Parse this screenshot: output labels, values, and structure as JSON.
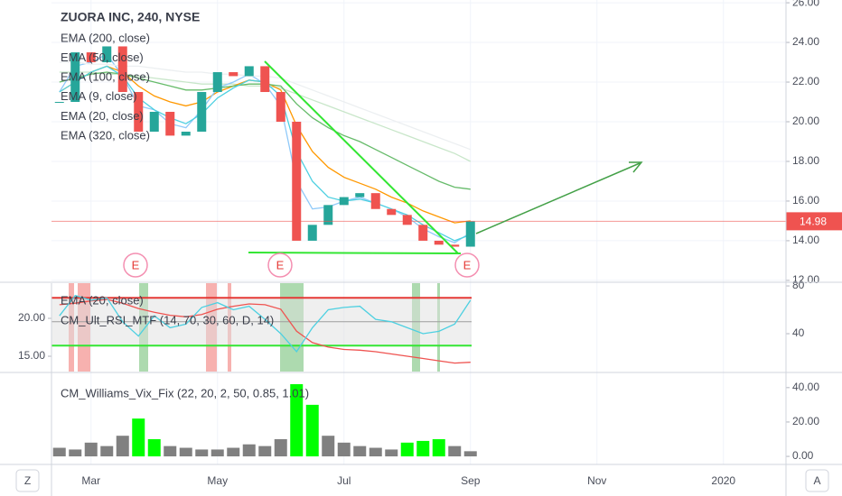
{
  "chart_data": [
    {
      "type": "candlestick",
      "title": "ZUORA INC, 240, NYSE",
      "categories": [
        null,
        null,
        "Mar",
        null,
        null,
        null,
        null,
        null,
        null,
        null,
        "May",
        null,
        null,
        null,
        null,
        null,
        null,
        null,
        "Jul",
        null,
        null,
        null,
        null,
        null,
        null,
        null,
        "Sep",
        null,
        null,
        null,
        null,
        null,
        null,
        null,
        "Nov",
        null,
        null,
        null,
        null,
        null,
        null,
        null,
        "2020",
        null,
        null,
        null
      ],
      "values": [
        21.0,
        23.5,
        23.0,
        23.8,
        21.5,
        19.5,
        20.5,
        19.3,
        19.5,
        21.5,
        22.5,
        22.3,
        22.8,
        21.5,
        20.0,
        14.0,
        14.8,
        15.8,
        16.2,
        16.4,
        15.6,
        15.3,
        14.8,
        14.0,
        13.8,
        13.7,
        14.98,
        null,
        null,
        null,
        null,
        null,
        null,
        null,
        null,
        null,
        null,
        null,
        null,
        null,
        null,
        null,
        null,
        null,
        null,
        null
      ],
      "up_color": "#26a69a",
      "down_color": "#ef5350",
      "series": [
        {
          "name": "EMA (200, close)",
          "color": "#c8e6c9",
          "values": [
            22.5,
            22.5,
            22.5,
            22.4,
            22.4,
            22.3,
            22.2,
            22.1,
            22.0,
            21.9,
            21.9,
            21.9,
            21.8,
            21.8,
            21.7,
            21.4,
            21.1,
            20.8,
            20.5,
            20.2,
            19.9,
            19.6,
            19.3,
            19.0,
            18.7,
            18.4,
            18.0,
            null,
            null,
            null,
            null,
            null,
            null,
            null,
            null,
            null,
            null,
            null,
            null,
            null,
            null,
            null,
            null,
            null,
            null,
            null
          ]
        },
        {
          "name": "EMA (50, close)",
          "color": "#ff9800",
          "values": [
            21.5,
            22.0,
            22.5,
            22.8,
            22.5,
            21.8,
            21.3,
            21.0,
            20.8,
            21.0,
            21.5,
            21.8,
            22.1,
            22.0,
            21.6,
            19.8,
            18.5,
            17.7,
            17.2,
            16.9,
            16.6,
            16.2,
            15.9,
            15.5,
            15.2,
            14.9,
            15.0,
            null,
            null,
            null,
            null,
            null,
            null,
            null,
            null,
            null,
            null,
            null,
            null,
            null,
            null,
            null,
            null,
            null,
            null,
            null
          ]
        },
        {
          "name": "EMA (100, close)",
          "color": "#66bb6a",
          "values": [
            22.0,
            22.2,
            22.4,
            22.5,
            22.4,
            22.2,
            22.0,
            21.8,
            21.6,
            21.6,
            21.7,
            21.8,
            21.9,
            21.9,
            21.8,
            20.9,
            20.2,
            19.7,
            19.3,
            19.0,
            18.6,
            18.2,
            17.8,
            17.4,
            17.0,
            16.7,
            16.6,
            null,
            null,
            null,
            null,
            null,
            null,
            null,
            null,
            null,
            null,
            null,
            null,
            null,
            null,
            null,
            null,
            null,
            null,
            null
          ]
        },
        {
          "name": "EMA (9, close)",
          "color": "#90caf9",
          "values": [
            21.5,
            22.8,
            23.0,
            23.4,
            22.3,
            20.8,
            20.6,
            19.9,
            19.7,
            20.6,
            21.7,
            22.0,
            22.4,
            21.9,
            20.8,
            17.0,
            15.6,
            15.7,
            16.0,
            16.2,
            15.9,
            15.6,
            15.2,
            14.6,
            14.2,
            13.9,
            14.4,
            null,
            null,
            null,
            null,
            null,
            null,
            null,
            null,
            null,
            null,
            null,
            null,
            null,
            null,
            null,
            null,
            null,
            null,
            null
          ]
        },
        {
          "name": "EMA (20, close)",
          "color": "#4dd0e1",
          "values": [
            21.5,
            22.0,
            22.5,
            22.8,
            22.3,
            21.2,
            20.6,
            20.2,
            19.9,
            20.4,
            21.2,
            21.7,
            22.1,
            22.0,
            21.3,
            18.5,
            17.0,
            16.2,
            16.0,
            16.1,
            15.9,
            15.6,
            15.3,
            14.8,
            14.4,
            14.0,
            14.3,
            null,
            null,
            null,
            null,
            null,
            null,
            null,
            null,
            null,
            null,
            null,
            null,
            null,
            null,
            null,
            null,
            null,
            null,
            null
          ]
        },
        {
          "name": "EMA (320, close)",
          "color": "#eceff1",
          "values": [
            23.0,
            23.0,
            22.9,
            22.9,
            22.8,
            22.8,
            22.7,
            22.6,
            22.5,
            22.5,
            22.4,
            22.4,
            22.3,
            22.3,
            22.2,
            21.9,
            21.6,
            21.3,
            21.0,
            20.7,
            20.4,
            20.1,
            19.8,
            19.5,
            19.2,
            18.9,
            18.6,
            null,
            null,
            null,
            null,
            null,
            null,
            null,
            null,
            null,
            null,
            null,
            null,
            null,
            null,
            null,
            null,
            null,
            null,
            null
          ]
        }
      ],
      "ylim": [
        11.95,
        26.14
      ],
      "yticks": [
        {
          "value": 26,
          "label": "26.00"
        },
        {
          "value": 24,
          "label": "24.00"
        },
        {
          "value": 22,
          "label": "22.00"
        },
        {
          "value": 20,
          "label": "20.00"
        },
        {
          "value": 18,
          "label": "18.00"
        },
        {
          "value": 16,
          "label": "16.00"
        },
        {
          "value": 14,
          "label": "14.00"
        },
        {
          "value": 12,
          "label": "12.00"
        }
      ],
      "grid": true,
      "price_line_color": "#ef5350"
    },
    {
      "type": "line",
      "series": [
        {
          "name": "EMA (20, close)",
          "color": "#ef5350",
          "axis": "y2",
          "values": [
            21.8,
            22.0,
            22.3,
            22.5,
            22.0,
            21.3,
            20.8,
            20.4,
            20.2,
            20.5,
            21.2,
            21.6,
            21.9,
            21.8,
            21.2,
            18.3,
            16.8,
            16.2,
            15.9,
            15.8,
            15.6,
            15.3,
            15.0,
            14.7,
            14.4,
            14.1,
            14.2,
            null,
            null,
            null,
            null,
            null,
            null,
            null,
            null,
            null,
            null,
            null,
            null,
            null,
            null,
            null,
            null,
            null,
            null,
            null
          ]
        },
        {
          "name": "CM_Ult_RSI_MTF (14, 70, 30, 60, D, 14)",
          "color": "#4dd0e1",
          "values": [
            55,
            72,
            68,
            70,
            50,
            38,
            55,
            45,
            48,
            62,
            66,
            60,
            63,
            52,
            40,
            25,
            45,
            60,
            62,
            63,
            52,
            50,
            45,
            40,
            42,
            48,
            68,
            null,
            null,
            null,
            null,
            null,
            null,
            null,
            null,
            null,
            null,
            null,
            null,
            null,
            null,
            null,
            null,
            null,
            null,
            null
          ]
        }
      ],
      "upper_band": 70,
      "lower_band": 30,
      "mid_line": 50,
      "ylim": [
        8.3,
        82.3
      ],
      "yticks": [
        80,
        40
      ],
      "y2lim": [
        12.98,
        24.64
      ],
      "y2ticks": [
        {
          "value": 20,
          "label": "20.00"
        },
        {
          "value": 15,
          "label": "15.00"
        }
      ]
    },
    {
      "type": "bar",
      "series": [
        {
          "name": "CM_Williams_Vix_Fix (22, 20, 2, 50, 0.85, 1.01)",
          "values": [
            5,
            4,
            8,
            6,
            12,
            22,
            10,
            6,
            5,
            4,
            4,
            5,
            7,
            6,
            10,
            42,
            30,
            12,
            8,
            6,
            5,
            4,
            8,
            9,
            10,
            6,
            3,
            null,
            null,
            null,
            null,
            null,
            null,
            null,
            null,
            null,
            null,
            null,
            null,
            null,
            null,
            null,
            null,
            null,
            null,
            null
          ],
          "colors": [
            "#808080",
            "#808080",
            "#808080",
            "#808080",
            "#808080",
            "#00ff00",
            "#00ff00",
            "#808080",
            "#808080",
            "#808080",
            "#808080",
            "#808080",
            "#808080",
            "#808080",
            "#808080",
            "#00ff00",
            "#00ff00",
            "#808080",
            "#808080",
            "#808080",
            "#808080",
            "#808080",
            "#00ff00",
            "#00ff00",
            "#00ff00",
            "#808080",
            "#808080",
            null,
            null,
            null,
            null,
            null,
            null,
            null,
            null,
            null,
            null,
            null,
            null,
            null,
            null,
            null,
            null,
            null,
            null,
            null
          ]
        }
      ],
      "ylim": [
        -4.16,
        48.3
      ],
      "yticks": [
        {
          "value": 40,
          "label": "40.00"
        },
        {
          "value": 20,
          "label": "20.00"
        },
        {
          "value": 0,
          "label": "0.00"
        }
      ]
    }
  ],
  "earnings_markers": [
    "E",
    "E",
    "E"
  ],
  "buttons": {
    "timezone": "Z",
    "auto_scale": "A"
  }
}
